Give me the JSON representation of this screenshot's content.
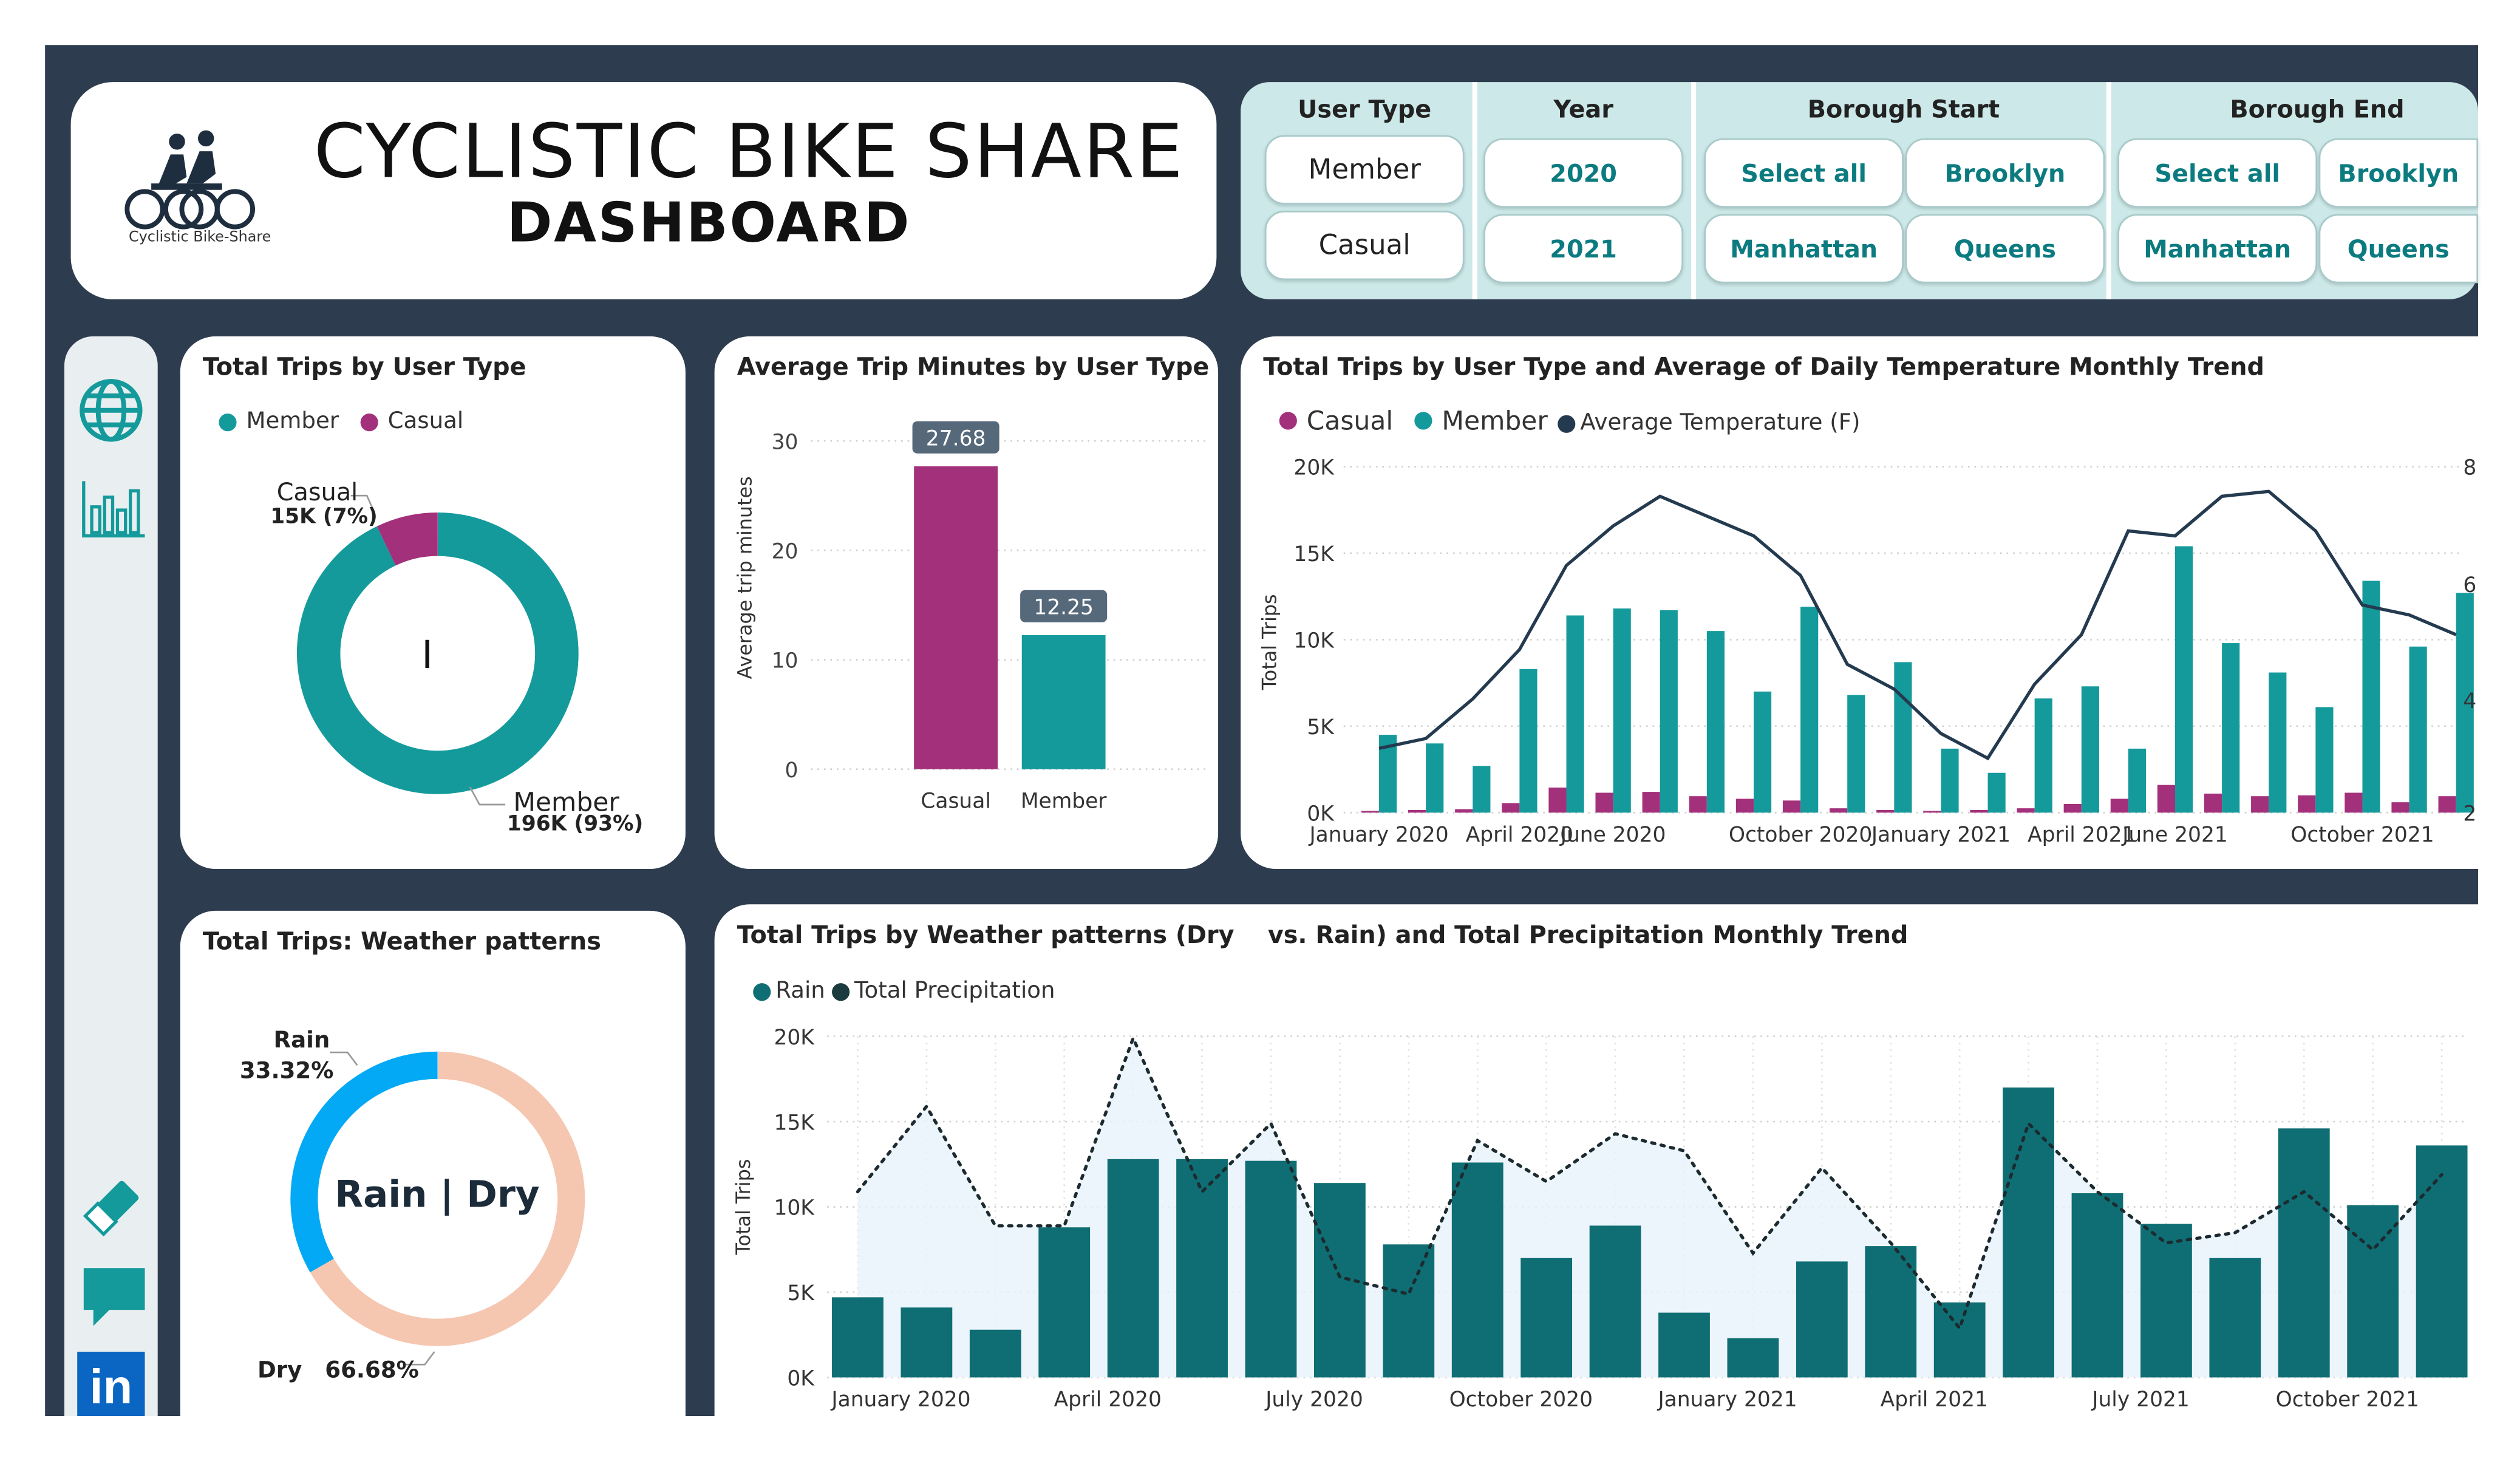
{
  "header": {
    "title": "CYCLISTIC BIKE SHARE",
    "subtitle": "DASHBOARD",
    "logo_caption": "Cyclistic Bike-Share",
    "logo_icon": "cyclists-icon"
  },
  "filters": {
    "user_type": {
      "label": "User Type",
      "options": [
        "Member",
        "Casual"
      ]
    },
    "year": {
      "label": "Year",
      "options": [
        "2020",
        "2021"
      ]
    },
    "borough_start": {
      "label": "Borough Start",
      "options": [
        "Select all",
        "Brooklyn",
        "Manhattan",
        "Queens"
      ]
    },
    "borough_end": {
      "label": "Borough End",
      "options": [
        "Select all",
        "Brooklyn",
        "Manhattan",
        "Queens"
      ]
    }
  },
  "sidebar": {
    "icons": [
      "globe-icon",
      "chart-icon",
      "eraser-icon",
      "comment-icon",
      "linkedin-icon"
    ],
    "linkedin_label": "in"
  },
  "colors": {
    "member": "#159a9c",
    "casual": "#a3307a",
    "temperature": "#243a4f",
    "rain": "#0f6e73",
    "rain_share": "#03a9f4",
    "dry_share": "#f5c6b0",
    "background": "#2e3c4f",
    "filter_panel": "#cce8e8"
  },
  "charts": {
    "donut_user": {
      "title": "Total Trips by User Type",
      "legend": [
        "Member",
        "Casual"
      ],
      "casual_name": "Casual",
      "casual_value": "15K (7%)",
      "member_name": "Member",
      "member_value": "196K (93%)",
      "center_text": "I"
    },
    "bar_minutes": {
      "title": "Average Trip Minutes by User Type",
      "ylabel": "Average trip minutes"
    },
    "monthly_temp": {
      "title": "Total Trips by User Type and Average of Daily Temperature Monthly Trend",
      "legend": [
        "Casual",
        "Member",
        "Average Temperature (F)"
      ],
      "ylabel": "Total Trips"
    },
    "donut_weather": {
      "title": "Total Trips: Weather patterns",
      "rain_name": "Rain",
      "rain_value": "33.32%",
      "dry_name": "Dry",
      "dry_value": "66.68%",
      "center_text": "Rain | Dry"
    },
    "weather_trend": {
      "title": "Total Trips by Weather patterns (Dry    vs. Rain) and Total Precipitation Monthly Trend",
      "legend": [
        "Rain",
        "Total Precipitation"
      ],
      "ylabel": "Total Trips"
    }
  },
  "chart_data": [
    {
      "type": "pie",
      "title": "Total Trips by User Type",
      "categories": [
        "Member",
        "Casual"
      ],
      "values": [
        196000,
        15000
      ],
      "percent": [
        93,
        7
      ]
    },
    {
      "type": "bar",
      "title": "Average Trip Minutes by User Type",
      "ylabel": "Average trip minutes",
      "categories": [
        "Casual",
        "Member"
      ],
      "values": [
        27.68,
        12.25
      ],
      "data_labels": [
        "27.68",
        "12.25"
      ],
      "ylim": [
        0,
        32
      ],
      "yticks": [
        0,
        10,
        20,
        30
      ]
    },
    {
      "type": "bar",
      "title": "Total Trips by User Type and Average of Daily Temperature Monthly Trend",
      "ylabel": "Total Trips",
      "x": [
        "2020-01",
        "2020-02",
        "2020-03",
        "2020-04",
        "2020-05",
        "2020-06",
        "2020-07",
        "2020-08",
        "2020-09",
        "2020-10",
        "2020-11",
        "2020-12",
        "2021-01",
        "2021-02",
        "2021-03",
        "2021-04",
        "2021-05",
        "2021-06",
        "2021-07",
        "2021-08",
        "2021-09",
        "2021-10",
        "2021-11",
        "2021-12"
      ],
      "tick_labels": [
        "January 2020",
        "April 2020",
        "June 2020",
        "October 2020",
        "January 2021",
        "April 2021",
        "June 2021",
        "October 2021"
      ],
      "yticks": [
        "0K",
        "5K",
        "10K",
        "15K",
        "20K"
      ],
      "ylim": [
        0,
        20000
      ],
      "series": [
        {
          "name": "Casual",
          "values": [
            100,
            150,
            200,
            550,
            1450,
            1150,
            1200,
            950,
            800,
            700,
            250,
            150,
            100,
            150,
            250,
            500,
            800,
            1600,
            1100,
            950,
            1000,
            1150,
            600,
            950
          ]
        },
        {
          "name": "Member",
          "values": [
            4500,
            4000,
            2700,
            8300,
            11400,
            11800,
            11700,
            10500,
            7000,
            11900,
            6800,
            8700,
            3700,
            2300,
            6600,
            7300,
            3700,
            15400,
            9800,
            8100,
            6100,
            13400,
            9600,
            12700
          ]
        },
        {
          "name": "Average Temperature (F)",
          "axis": "right",
          "values": [
            33,
            35,
            43,
            53,
            70,
            78,
            84,
            80,
            76,
            68,
            50,
            45,
            36,
            31,
            46,
            56,
            77,
            76,
            84,
            85,
            77,
            62,
            60,
            56
          ]
        }
      ],
      "y2ticks": [
        "8",
        "6",
        "4",
        "2"
      ]
    },
    {
      "type": "pie",
      "title": "Total Trips: Weather patterns",
      "categories": [
        "Rain",
        "Dry"
      ],
      "values": [
        33.32,
        66.68
      ]
    },
    {
      "type": "bar",
      "title": "Total Trips by Weather patterns (Dry    vs. Rain) and Total Precipitation Monthly Trend",
      "ylabel": "Total Trips",
      "x": [
        "2020-01",
        "2020-02",
        "2020-03",
        "2020-04",
        "2020-05",
        "2020-06",
        "2020-07",
        "2020-08",
        "2020-09",
        "2020-10",
        "2020-11",
        "2020-12",
        "2021-01",
        "2021-02",
        "2021-03",
        "2021-04",
        "2021-05",
        "2021-06",
        "2021-07",
        "2021-08",
        "2021-09",
        "2021-10",
        "2021-11",
        "2021-12"
      ],
      "tick_labels": [
        "January 2020",
        "April 2020",
        "July 2020",
        "October 2020",
        "January 2021",
        "April 2021",
        "July 2021",
        "October 2021"
      ],
      "yticks": [
        "0K",
        "5K",
        "10K",
        "15K",
        "20K"
      ],
      "ylim": [
        0,
        20000
      ],
      "series": [
        {
          "name": "Rain",
          "values": [
            4700,
            4100,
            2800,
            8800,
            12800,
            12800,
            12700,
            11400,
            7800,
            12600,
            7000,
            8900,
            3800,
            2300,
            6800,
            7700,
            4400,
            17000,
            10800,
            9000,
            7000,
            14600,
            10100,
            13600
          ]
        },
        {
          "name": "Total Precipitation",
          "line_style": "dotted",
          "relative_values": [
            0.45,
            0.7,
            0.35,
            0.35,
            0.9,
            0.45,
            0.65,
            0.2,
            0.15,
            0.6,
            0.48,
            0.62,
            0.57,
            0.27,
            0.52,
            0.3,
            0.05,
            0.65,
            0.45,
            0.3,
            0.33,
            0.45,
            0.28,
            0.5
          ]
        }
      ]
    }
  ]
}
